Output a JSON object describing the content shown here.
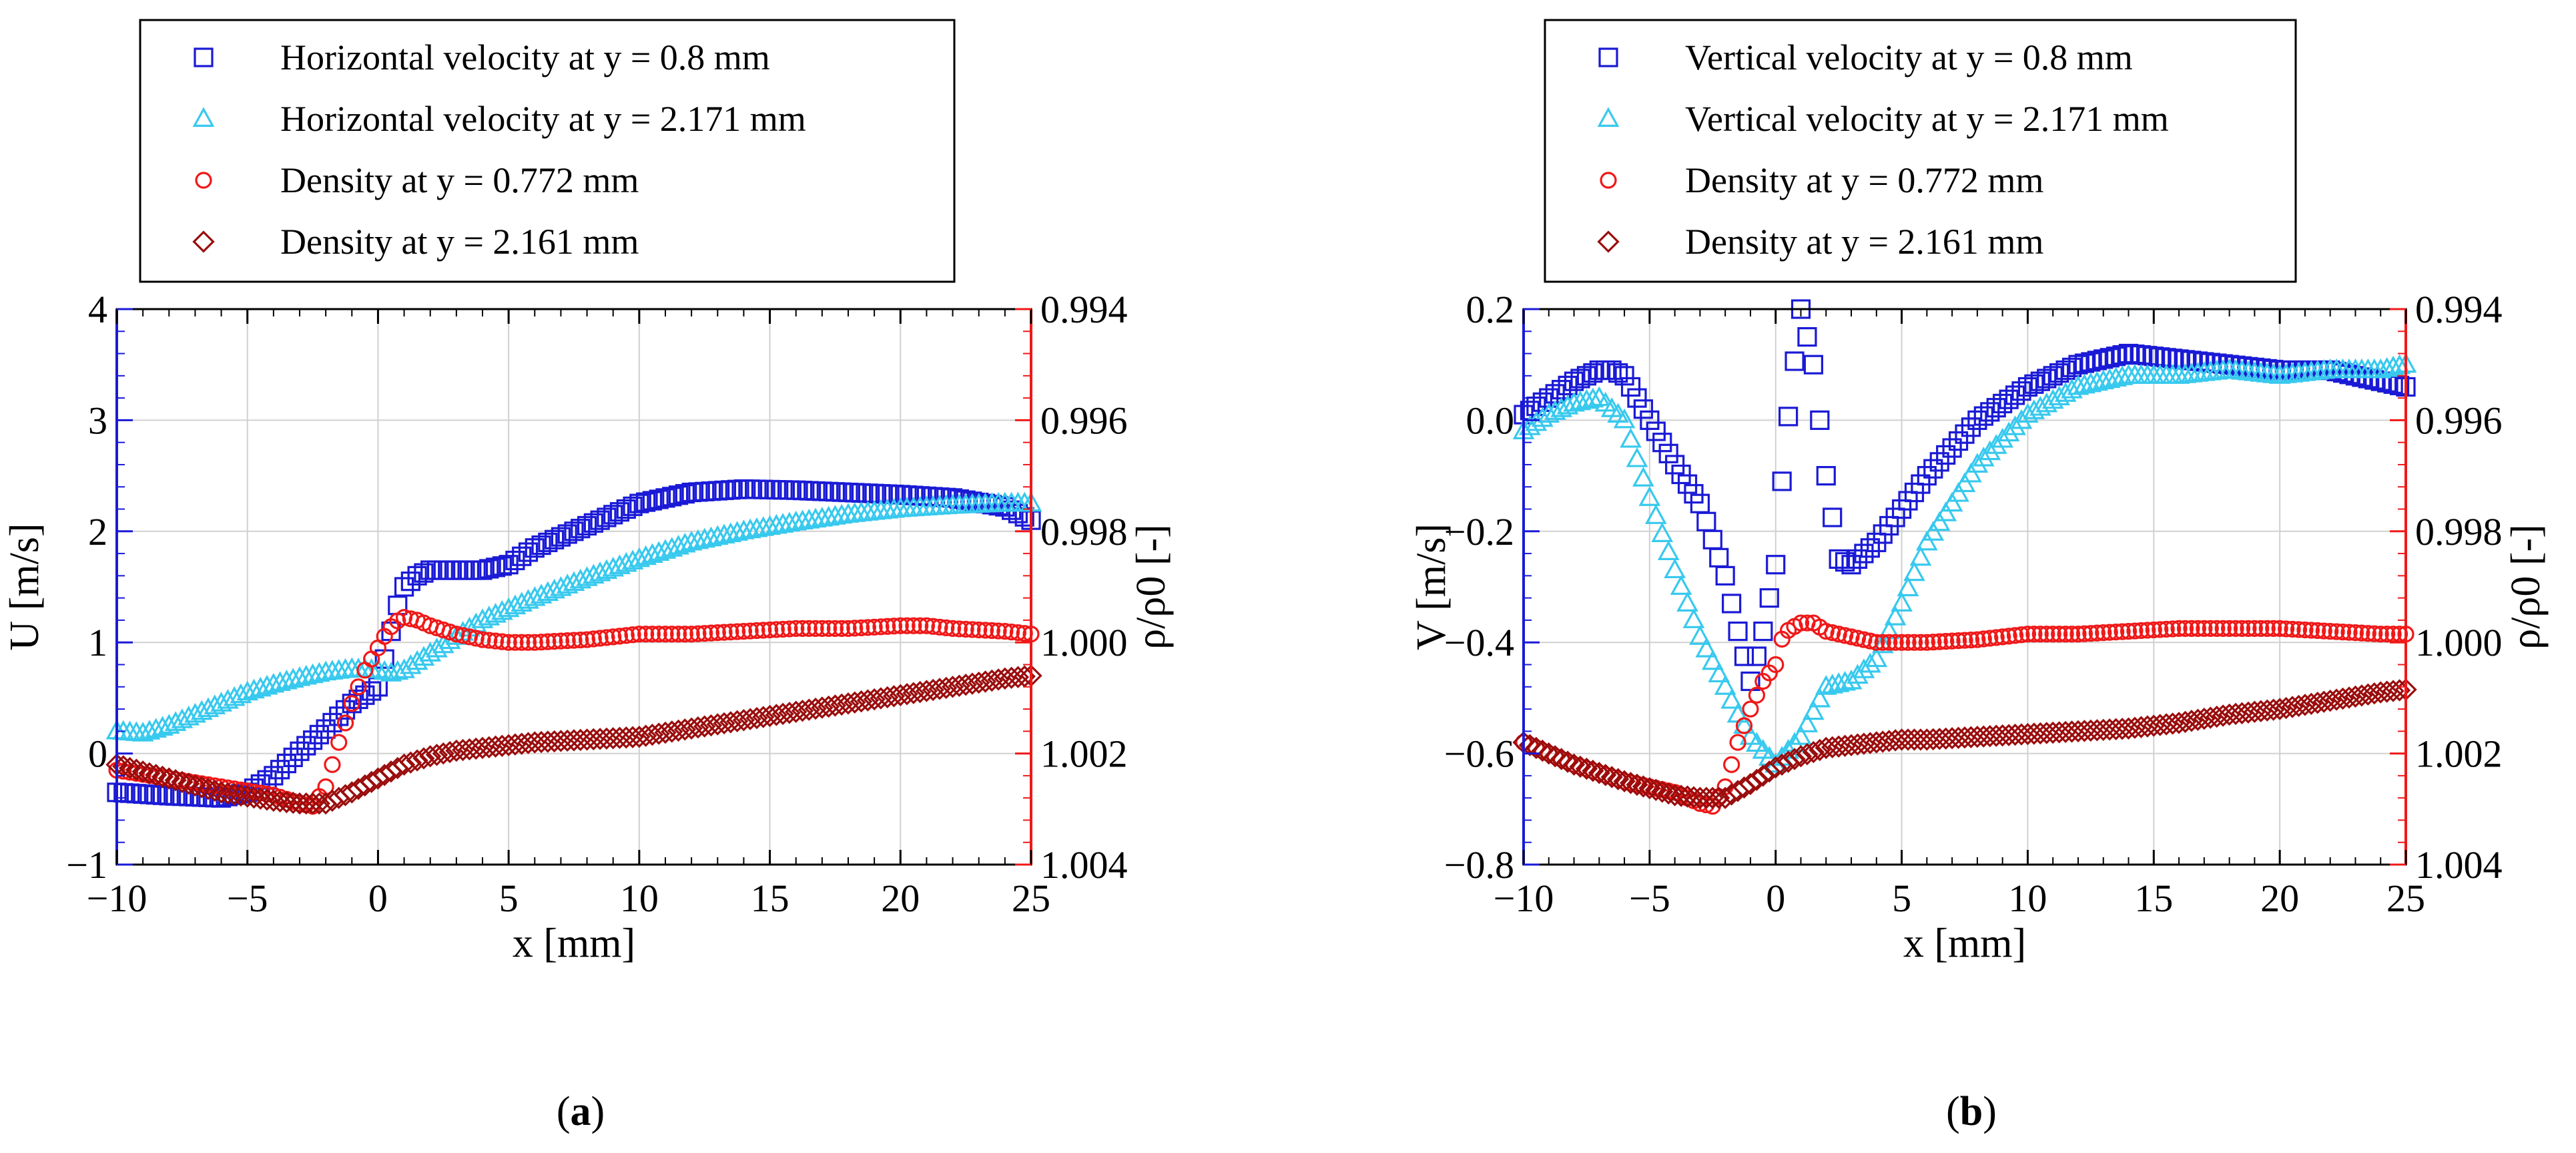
{
  "colors": {
    "blue": "#1a1ad6",
    "cyan": "#38c9ee",
    "red": "#f01818",
    "darkred": "#9a0d0d",
    "grid": "#d0d0d0"
  },
  "chart_data": [
    {
      "type": "scatter",
      "panel_label": {
        "open": "(",
        "letter": "a",
        "close": ")"
      },
      "title": "",
      "xlabel": "x [mm]",
      "ylabel": "U [m/s]",
      "y2label": "ρ/ρ0 [-]",
      "xlim": [
        -10,
        25
      ],
      "ylim": [
        -1,
        4
      ],
      "y2lim": [
        1.004,
        0.994
      ],
      "x_ticks": [
        "−10",
        "−5",
        "0",
        "5",
        "10",
        "15",
        "20",
        "25"
      ],
      "x_tick_values": [
        -10,
        -5,
        0,
        5,
        10,
        15,
        20,
        25
      ],
      "y_ticks": [
        "−1",
        "0",
        "1",
        "2",
        "3",
        "4"
      ],
      "y_tick_values": [
        -1,
        0,
        1,
        2,
        3,
        4
      ],
      "y2_ticks": [
        "1.004",
        "1.002",
        "1.000",
        "0.998",
        "0.996",
        "0.994"
      ],
      "y2_tick_values": [
        1.004,
        1.002,
        1.0,
        0.998,
        0.996,
        0.994
      ],
      "grid": true,
      "legend_position": "top-outside",
      "series": [
        {
          "name": "Horizontal velocity at y = 0.8 mm",
          "marker": "square",
          "color": "blue",
          "axis": "left",
          "x": [
            -10,
            -8,
            -6,
            -5,
            -4,
            -3,
            -2,
            -1,
            0,
            0.7,
            1,
            1.5,
            2,
            3,
            4,
            5,
            6,
            8,
            10,
            12,
            14,
            16,
            18,
            20,
            22,
            24,
            25
          ],
          "y": [
            -0.35,
            -0.38,
            -0.4,
            -0.35,
            -0.2,
            0.02,
            0.22,
            0.45,
            0.6,
            1.3,
            1.5,
            1.6,
            1.65,
            1.65,
            1.65,
            1.7,
            1.85,
            2.05,
            2.25,
            2.35,
            2.38,
            2.37,
            2.35,
            2.33,
            2.3,
            2.22,
            2.1
          ]
        },
        {
          "name": "Horizontal velocity at y = 2.171 mm",
          "marker": "triangle",
          "color": "cyan",
          "axis": "left",
          "x": [
            -10,
            -9,
            -8,
            -7,
            -6,
            -5,
            -4,
            -3,
            -2,
            -1,
            0,
            0.5,
            1,
            2,
            3,
            4,
            6,
            8,
            10,
            12,
            14,
            16,
            18,
            20,
            22,
            24,
            25
          ],
          "y": [
            0.2,
            0.18,
            0.25,
            0.35,
            0.45,
            0.55,
            0.62,
            0.68,
            0.73,
            0.76,
            0.75,
            0.72,
            0.75,
            0.9,
            1.05,
            1.2,
            1.4,
            1.58,
            1.75,
            1.9,
            2.0,
            2.08,
            2.15,
            2.2,
            2.23,
            2.25,
            2.25
          ]
        },
        {
          "name": "Density at y = 0.772 mm",
          "marker": "circle",
          "color": "red",
          "axis": "right",
          "x": [
            -10,
            -8,
            -6,
            -4,
            -3,
            -2.5,
            -2,
            -1.5,
            -1,
            -0.5,
            0,
            0.3,
            0.6,
            1,
            1.5,
            2,
            3,
            4,
            5,
            6,
            8,
            10,
            12,
            14,
            16,
            18,
            20,
            21,
            22,
            24,
            25
          ],
          "y": [
            1.0023,
            1.00245,
            1.0026,
            1.00275,
            1.0029,
            1.00295,
            1.0026,
            1.0018,
            1.0011,
            1.0005,
            1.0001,
            0.99985,
            0.99965,
            0.99955,
            0.9996,
            0.9997,
            0.99985,
            0.99995,
            1.0,
            1.0,
            0.99995,
            0.99985,
            0.99985,
            0.9998,
            0.99975,
            0.99975,
            0.9997,
            0.9997,
            0.99975,
            0.9998,
            0.99985
          ]
        },
        {
          "name": "Density at y = 2.161 mm",
          "marker": "diamond",
          "color": "darkred",
          "axis": "right",
          "x": [
            -10,
            -8,
            -6,
            -4,
            -3,
            -2,
            -1,
            0,
            1,
            2,
            3,
            4,
            5,
            6,
            8,
            10,
            12,
            14,
            16,
            18,
            20,
            22,
            24,
            25
          ],
          "y": [
            1.0022,
            1.00245,
            1.0027,
            1.00285,
            1.0029,
            1.0029,
            1.0027,
            1.00245,
            1.0022,
            1.00205,
            1.00195,
            1.0019,
            1.00185,
            1.0018,
            1.00175,
            1.0017,
            1.00155,
            1.0014,
            1.00125,
            1.0011,
            1.00095,
            1.0008,
            1.00065,
            1.0006
          ]
        }
      ]
    },
    {
      "type": "scatter",
      "panel_label": {
        "open": "(",
        "letter": "b",
        "close": ")"
      },
      "title": "",
      "xlabel": "x [mm]",
      "ylabel": "V [m/s]",
      "y2label": "ρ/ρ0 [-]",
      "xlim": [
        -10,
        25
      ],
      "ylim": [
        -0.8,
        0.2
      ],
      "y2lim": [
        1.004,
        0.994
      ],
      "x_ticks": [
        "−10",
        "−5",
        "0",
        "5",
        "10",
        "15",
        "20",
        "25"
      ],
      "x_tick_values": [
        -10,
        -5,
        0,
        5,
        10,
        15,
        20,
        25
      ],
      "y_ticks": [
        "−0.8",
        "−0.6",
        "−0.4",
        "−0.2",
        "0.0",
        "0.2"
      ],
      "y_tick_values": [
        -0.8,
        -0.6,
        -0.4,
        -0.2,
        0.0,
        0.2
      ],
      "y2_ticks": [
        "1.004",
        "1.002",
        "1.000",
        "0.998",
        "0.996",
        "0.994"
      ],
      "y2_tick_values": [
        1.004,
        1.002,
        1.0,
        0.998,
        0.996,
        0.994
      ],
      "grid": true,
      "legend_position": "top-outside",
      "series": [
        {
          "name": "Vertical velocity at y = 0.8 mm",
          "marker": "square",
          "color": "blue",
          "axis": "left",
          "x": [
            -10,
            -9,
            -8,
            -7,
            -6.5,
            -6,
            -5,
            -4,
            -3,
            -2,
            -1.5,
            -1,
            -0.5,
            0,
            0.3,
            0.6,
            1,
            1.5,
            2,
            2.5,
            3,
            4,
            5,
            6,
            8,
            10,
            12,
            14,
            16,
            18,
            20,
            22,
            24,
            25
          ],
          "y": [
            0.01,
            0.04,
            0.07,
            0.09,
            0.09,
            0.08,
            0.0,
            -0.08,
            -0.15,
            -0.28,
            -0.38,
            -0.47,
            -0.38,
            -0.26,
            -0.08,
            0.05,
            0.2,
            0.1,
            -0.1,
            -0.25,
            -0.26,
            -0.22,
            -0.16,
            -0.1,
            0.0,
            0.06,
            0.1,
            0.12,
            0.11,
            0.1,
            0.09,
            0.09,
            0.07,
            0.06
          ]
        },
        {
          "name": "Vertical velocity at y = 2.171 mm",
          "marker": "triangle",
          "color": "cyan",
          "axis": "left",
          "x": [
            -10,
            -9,
            -8,
            -7,
            -6,
            -5,
            -4,
            -3,
            -2,
            -1.5,
            -1,
            0,
            1,
            2,
            3,
            4,
            5,
            6,
            8,
            10,
            12,
            14,
            16,
            18,
            20,
            22,
            24,
            25
          ],
          "y": [
            -0.02,
            0.01,
            0.03,
            0.04,
            0.0,
            -0.14,
            -0.27,
            -0.39,
            -0.48,
            -0.53,
            -0.57,
            -0.62,
            -0.57,
            -0.48,
            -0.47,
            -0.43,
            -0.33,
            -0.22,
            -0.08,
            0.01,
            0.06,
            0.08,
            0.08,
            0.09,
            0.08,
            0.09,
            0.09,
            0.1
          ]
        },
        {
          "name": "Density at y = 0.772 mm",
          "marker": "circle",
          "color": "red",
          "axis": "right",
          "x": [
            -10,
            -8,
            -6,
            -4,
            -3,
            -2.5,
            -2,
            -1.5,
            -1,
            -0.5,
            0,
            0.3,
            0.6,
            1,
            1.5,
            2,
            3,
            4,
            5,
            6,
            8,
            10,
            12,
            14,
            16,
            18,
            20,
            22,
            24,
            25
          ],
          "y": [
            1.0018,
            1.0022,
            1.0025,
            1.0027,
            1.0029,
            1.00295,
            1.0026,
            1.0018,
            1.0012,
            1.0007,
            1.0004,
            0.99985,
            0.99975,
            0.99965,
            0.99965,
            0.9998,
            0.9999,
            1.0,
            1.0,
            1.0,
            0.99995,
            0.99985,
            0.99985,
            0.9998,
            0.99975,
            0.99975,
            0.99975,
            0.9998,
            0.99985,
            0.99985
          ]
        },
        {
          "name": "Density at y = 2.161 mm",
          "marker": "diamond",
          "color": "darkred",
          "axis": "right",
          "x": [
            -10,
            -8,
            -6,
            -4,
            -3,
            -2,
            -1,
            0,
            1,
            2,
            3,
            4,
            5,
            6,
            8,
            10,
            12,
            14,
            16,
            18,
            20,
            22,
            24,
            25
          ],
          "y": [
            1.0018,
            1.0022,
            1.0025,
            1.00275,
            1.0028,
            1.0028,
            1.00255,
            1.00225,
            1.00205,
            1.0019,
            1.00185,
            1.0018,
            1.00175,
            1.00175,
            1.0017,
            1.00165,
            1.0016,
            1.00155,
            1.00145,
            1.0013,
            1.0012,
            1.00105,
            1.0009,
            1.00085
          ]
        }
      ]
    }
  ]
}
